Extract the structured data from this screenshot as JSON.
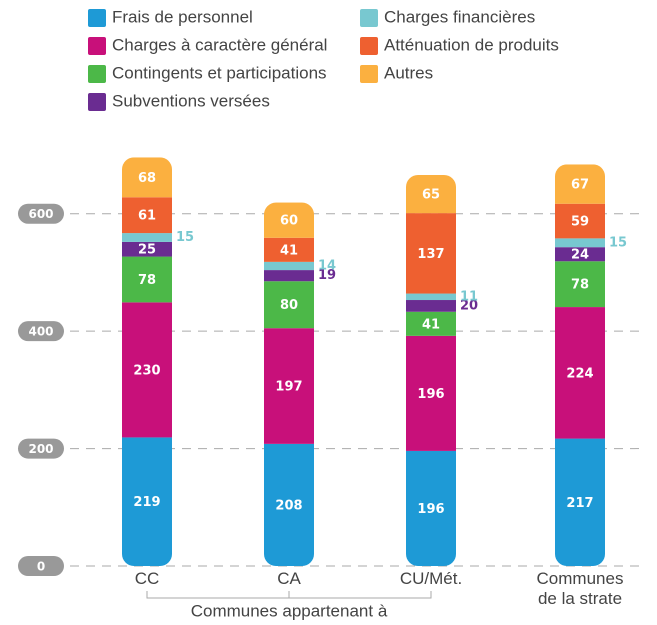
{
  "chart_data": {
    "type": "stacked_bar",
    "categories": [
      "CC",
      "CA",
      "CU/Mét.",
      "Communes de la strate"
    ],
    "group_label": "Communes appartenant à",
    "series": [
      {
        "name": "Frais de personnel",
        "color": "#1e9ad6",
        "values": [
          219,
          208,
          196,
          217
        ]
      },
      {
        "name": "Charges à caractère général",
        "color": "#c8107a",
        "values": [
          230,
          197,
          196,
          224
        ]
      },
      {
        "name": "Contingents et participations",
        "color": "#4cb848",
        "values": [
          78,
          80,
          41,
          78
        ]
      },
      {
        "name": "Subventions versées",
        "color": "#6a2c91",
        "values": [
          25,
          19,
          20,
          24
        ]
      },
      {
        "name": "Charges financières",
        "color": "#78c8d0",
        "values": [
          15,
          14,
          11,
          15
        ]
      },
      {
        "name": "Atténuation de produits",
        "color": "#ee6030",
        "values": [
          61,
          41,
          137,
          59
        ]
      },
      {
        "name": "Autres",
        "color": "#fbb040",
        "values": [
          68,
          60,
          65,
          67
        ]
      }
    ],
    "ylim": [
      0,
      700
    ],
    "yticks": [
      0,
      200,
      400,
      600
    ],
    "grid": true
  }
}
